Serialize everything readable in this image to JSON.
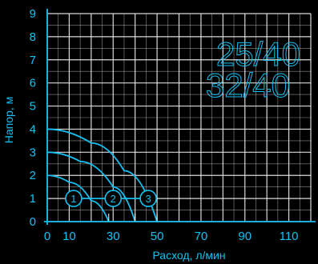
{
  "chart_data": {
    "type": "line",
    "xlabel": "Расход, л/мин",
    "ylabel": "Напор, м",
    "x_ticks": [
      "0",
      "10",
      "30",
      "50",
      "70",
      "90",
      "110"
    ],
    "y_ticks": [
      "0",
      "1",
      "2",
      "3",
      "4",
      "5",
      "6",
      "7",
      "8",
      "9"
    ],
    "xlim": [
      0,
      120
    ],
    "ylim": [
      0,
      9
    ],
    "grid": true,
    "models": [
      "25/40",
      "32/40"
    ],
    "series": [
      {
        "name": "1",
        "x": [
          0,
          10,
          20,
          28
        ],
        "y": [
          2.0,
          1.7,
          0.9,
          0
        ]
      },
      {
        "name": "2",
        "x": [
          0,
          15,
          30,
          40
        ],
        "y": [
          3.0,
          2.6,
          1.5,
          0
        ]
      },
      {
        "name": "3",
        "x": [
          0,
          20,
          35,
          50
        ],
        "y": [
          4.0,
          3.4,
          2.2,
          0
        ]
      }
    ],
    "markers": [
      {
        "label": "1",
        "x": 12,
        "y": 1
      },
      {
        "label": "2",
        "x": 30,
        "y": 1
      },
      {
        "label": "3",
        "x": 46,
        "y": 1
      }
    ],
    "colors": {
      "axis": "#16c0f2",
      "grid": "#ffffff",
      "line": "#16c0f2",
      "background": "#000000"
    }
  }
}
